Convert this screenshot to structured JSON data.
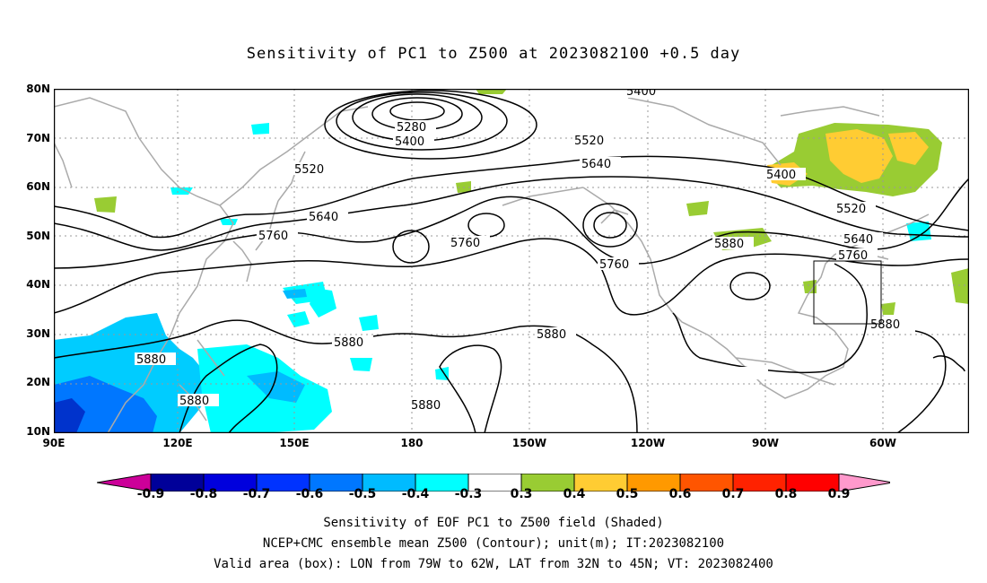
{
  "title": "Sensitivity of PC1 to Z500 at 2023082100 +0.5 day",
  "lat_labels": [
    "80N",
    "70N",
    "60N",
    "50N",
    "40N",
    "30N",
    "20N",
    "10N"
  ],
  "lon_labels": [
    "90E",
    "120E",
    "150E",
    "180",
    "150W",
    "120W",
    "90W",
    "60W"
  ],
  "contour_labels": [
    "5400",
    "5280",
    "5400",
    "5520",
    "5520",
    "5640",
    "5640",
    "5760",
    "5760",
    "5760",
    "5880",
    "5880",
    "5880",
    "5880",
    "5880",
    "5880",
    "5400",
    "5520",
    "5640",
    "5760",
    "5880"
  ],
  "colorbar": {
    "labels": [
      "-0.9",
      "-0.8",
      "-0.7",
      "-0.6",
      "-0.5",
      "-0.4",
      "-0.3",
      "0.3",
      "0.4",
      "0.5",
      "0.6",
      "0.7",
      "0.8",
      "0.9"
    ],
    "colors": [
      "#cc0099",
      "#000099",
      "#0000dd",
      "#0033ff",
      "#0077ff",
      "#00bbff",
      "#00ffff",
      "#ffffff",
      "#99cc33",
      "#ffcc33",
      "#ff9900",
      "#ff5500",
      "#ff2200",
      "#ff0000",
      "#ff99cc"
    ]
  },
  "captions": [
    "Sensitivity of EOF PC1 to Z500 field (Shaded)",
    "NCEP+CMC ensemble mean Z500 (Contour); unit(m); IT:2023082100",
    "Valid area (box): LON from 79W to 62W, LAT from 32N to 45N; VT: 2023082400"
  ],
  "valid_area": {
    "lon_from": "79W",
    "lon_to": "62W",
    "lat_from": "32N",
    "lat_to": "45N"
  },
  "colors": {
    "land": "#aaaaaa",
    "grid": "#999999",
    "contour": "#000000"
  }
}
